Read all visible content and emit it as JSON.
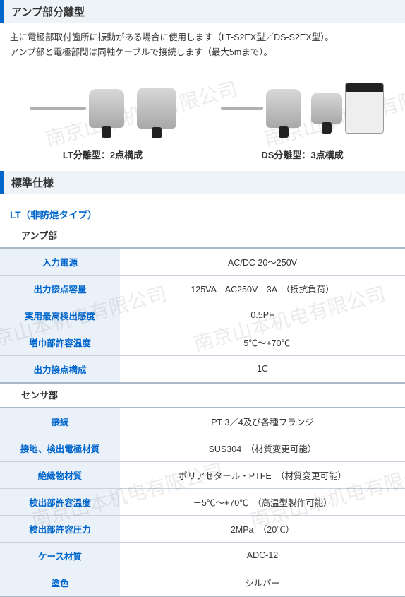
{
  "section1": {
    "title": "アンプ部分離型"
  },
  "intro": {
    "line1": "主に電極部取付箇所に振動がある場合に使用します（LT-S2EX型／DS-S2EX型）。",
    "line2": "アンプ部と電極部間は同軸ケーブルで接続します（最大5mまで）。"
  },
  "products": {
    "lt": {
      "label": "LT分離型：2点構成"
    },
    "ds": {
      "label": "DS分離型：3点構成"
    }
  },
  "section2": {
    "title": "標準仕様"
  },
  "lt_spec": {
    "heading": "LT（非防焜タイプ）",
    "amp_label": "アンプ部",
    "sensor_label": "センサ部"
  },
  "amp_table": {
    "rows": [
      {
        "label": "入力電源",
        "value": "AC/DC 20～250V"
      },
      {
        "label": "出力接点容量",
        "value": "125VA　AC250V　3A　（抵抗負荷）"
      },
      {
        "label": "実用最高検出感度",
        "value": "0.5PF"
      },
      {
        "label": "増巾部許容温度",
        "value": "－5℃～+70℃"
      },
      {
        "label": "出力接点構成",
        "value": "1C"
      }
    ]
  },
  "sensor_table": {
    "rows": [
      {
        "label": "接続",
        "value": "PT 3／4及び各種フランジ"
      },
      {
        "label": "接地、検出電極材質",
        "value": "SUS304　（材質変更可能）"
      },
      {
        "label": "絶縁物材質",
        "value": "ポリアセタール・PTFE　（材質変更可能）"
      },
      {
        "label": "検出部許容温度",
        "value": "－5℃～+70℃　（高温型製作可能）"
      },
      {
        "label": "検出部許容圧力",
        "value": "2MPa　（20℃）"
      },
      {
        "label": "ケース材質",
        "value": "ADC-12"
      },
      {
        "label": "塗色",
        "value": "シルバー"
      }
    ]
  },
  "watermark_text": "南京山本机电有限公司",
  "colors": {
    "accent": "#0066cc",
    "header_bg": "#eef3f8",
    "table_th_bg": "#eaf1f9",
    "border": "#c8d2dc"
  }
}
